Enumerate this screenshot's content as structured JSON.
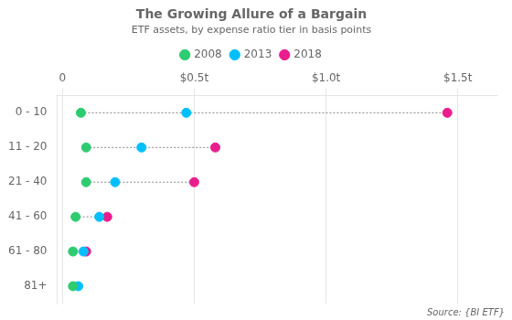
{
  "chart_data": {
    "type": "dot",
    "orientation": "horizontal",
    "title": "The Growing Allure of a Bargain",
    "subtitle": "ETF assets, by expense ratio tier in basis points",
    "source": "Source: {BI ETF}",
    "categories": [
      "0 - 10",
      "11 - 20",
      "21 - 40",
      "41 - 60",
      "61 - 80",
      "81+"
    ],
    "series": [
      {
        "name": "2008",
        "color": "#2ecc71",
        "values": [
          0.07,
          0.09,
          0.09,
          0.05,
          0.04,
          0.04
        ]
      },
      {
        "name": "2013",
        "color": "#00bfff",
        "values": [
          0.47,
          0.3,
          0.2,
          0.14,
          0.08,
          0.06
        ]
      },
      {
        "name": "2018",
        "color": "#e91e8c",
        "values": [
          1.46,
          0.58,
          0.5,
          0.17,
          0.09,
          null
        ]
      }
    ],
    "xlim": [
      -0.02,
      1.65
    ],
    "xticks": [
      0,
      {
        "value": 0.5,
        "label": "$0.5t"
      },
      {
        "value": 1.0,
        "label": "$1.0t"
      },
      {
        "value": 1.5,
        "label": "$1.5t"
      }
    ],
    "grid": true,
    "legend": "top"
  }
}
